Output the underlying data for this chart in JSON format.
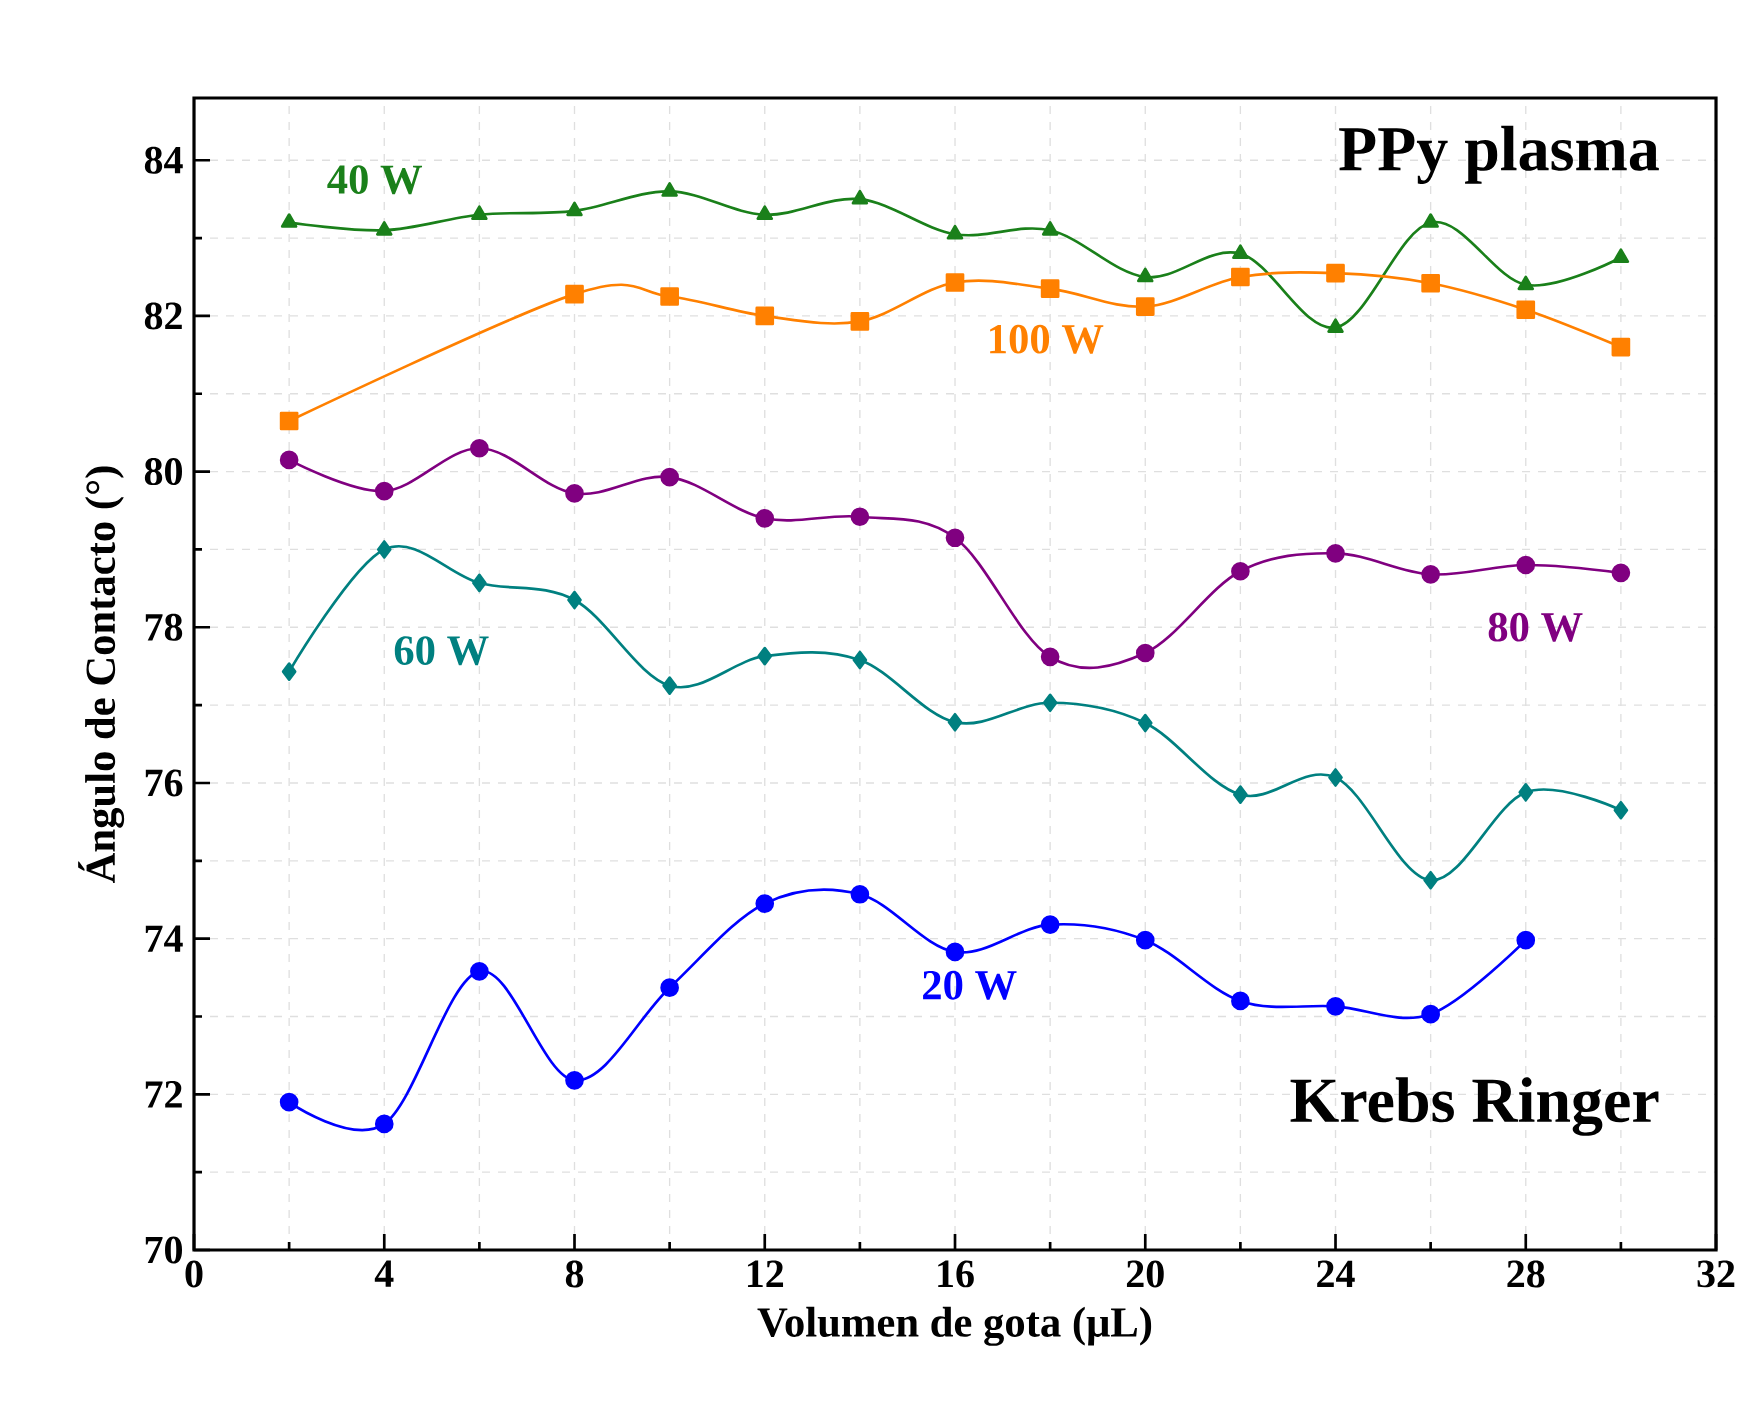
{
  "chart_data": {
    "type": "line",
    "xlabel": "Volumen de gota (μL)",
    "ylabel": "Ángulo de Contacto (°)",
    "annotations": [
      "PPy plasma",
      "Krebs Ringer"
    ],
    "xlim": [
      0,
      32
    ],
    "xticks": [
      0,
      4,
      8,
      12,
      16,
      20,
      24,
      28,
      32
    ],
    "ylim": [
      70,
      84.8
    ],
    "yticks": [
      70,
      72,
      74,
      76,
      78,
      80,
      82,
      84
    ],
    "grid": true,
    "line_style": "solid",
    "series": [
      {
        "name": "40 W",
        "color": "#1a801a",
        "marker": "triangle",
        "x": [
          2,
          4,
          6,
          8,
          10,
          12,
          14,
          16,
          18,
          20,
          22,
          24,
          26,
          28,
          30
        ],
        "values": [
          83.2,
          83.1,
          83.3,
          83.35,
          83.6,
          83.3,
          83.5,
          83.05,
          83.1,
          82.5,
          82.8,
          81.85,
          83.2,
          82.4,
          82.75
        ]
      },
      {
        "name": "100 W",
        "color": "#ff8000",
        "marker": "square",
        "x": [
          2,
          8,
          10,
          12,
          14,
          16,
          18,
          20,
          22,
          24,
          26,
          28,
          30
        ],
        "values": [
          80.65,
          82.28,
          82.25,
          82.0,
          81.93,
          82.43,
          82.35,
          82.12,
          82.5,
          82.55,
          82.42,
          82.08,
          81.6
        ]
      },
      {
        "name": "80 W",
        "color": "#800080",
        "marker": "circle",
        "x": [
          2,
          4,
          6,
          8,
          10,
          12,
          14,
          16,
          18,
          20,
          22,
          24,
          26,
          28,
          30
        ],
        "values": [
          80.15,
          79.75,
          80.3,
          79.72,
          79.93,
          79.4,
          79.42,
          79.15,
          77.62,
          77.67,
          78.72,
          78.95,
          78.68,
          78.8,
          78.7
        ]
      },
      {
        "name": "60 W",
        "color": "#008080",
        "marker": "diamond",
        "x": [
          2,
          4,
          6,
          8,
          10,
          12,
          14,
          16,
          18,
          20,
          22,
          24,
          26,
          28,
          30
        ],
        "values": [
          77.43,
          79.0,
          78.57,
          78.35,
          77.25,
          77.63,
          77.58,
          76.78,
          77.03,
          76.77,
          75.85,
          76.07,
          74.75,
          75.88,
          75.65
        ]
      },
      {
        "name": "20 W",
        "color": "#0000ff",
        "marker": "circle",
        "x": [
          2,
          4,
          6,
          8,
          10,
          12,
          14,
          16,
          18,
          20,
          22,
          24,
          26,
          28
        ],
        "values": [
          71.9,
          71.62,
          73.58,
          72.18,
          73.37,
          74.45,
          74.57,
          73.83,
          74.18,
          73.98,
          73.2,
          73.13,
          73.03,
          73.98
        ]
      }
    ]
  }
}
